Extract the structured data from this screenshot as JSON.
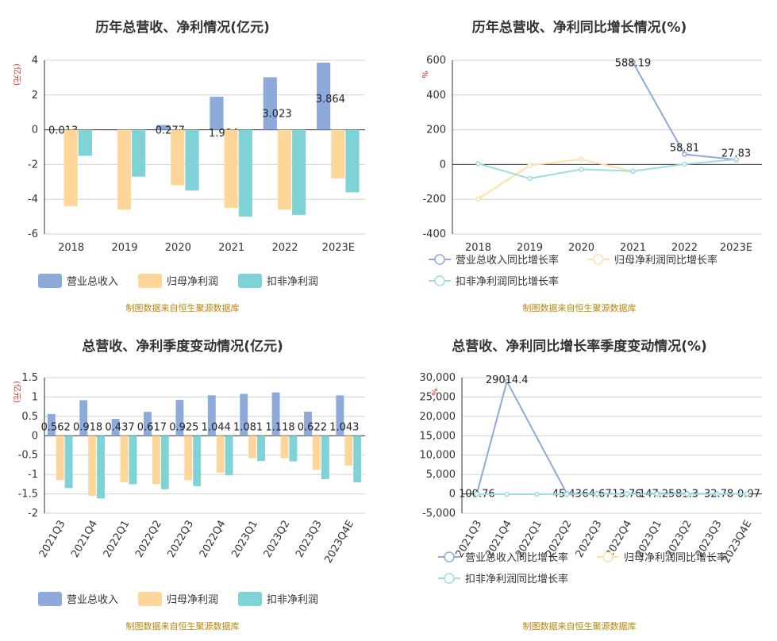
{
  "colors": {
    "revenue_bar": "#8eaadb",
    "netprofit_bar": "#ffd699",
    "deducted_bar": "#7fd3d6",
    "revenue_line": "#8eaadb",
    "netprofit_line": "#ffe0a8",
    "deducted_line": "#9ddde0",
    "source": "#b8860b",
    "unit": "#d62728"
  },
  "source_text": "制图数据来自恒生聚源数据库",
  "chart_data": [
    {
      "type": "bar",
      "title": "历年总营收、净利情况(亿元)",
      "ylabel": "(亿元)",
      "categories": [
        "2018",
        "2019",
        "2020",
        "2021",
        "2022",
        "2023E"
      ],
      "ylim": [
        -6,
        4
      ],
      "yticks": [
        4,
        2,
        0,
        -2,
        -4,
        -6
      ],
      "grid": true,
      "legend": "bottom",
      "series": [
        {
          "name": "营业总收入",
          "values": [
            0.013,
            0.0,
            0.277,
            1.904,
            3.023,
            3.864
          ],
          "labels": [
            "0.013",
            "",
            "0.277",
            "1.904",
            "3.023",
            "3.864"
          ]
        },
        {
          "name": "归母净利润",
          "values": [
            -4.4,
            -4.6,
            -3.2,
            -4.5,
            -4.6,
            -2.8
          ]
        },
        {
          "name": "扣非净利润",
          "values": [
            -1.5,
            -2.7,
            -3.5,
            -5.0,
            -4.9,
            -3.6
          ]
        }
      ]
    },
    {
      "type": "line",
      "title": "历年总营收、净利同比增长情况(%)",
      "ylabel": "%",
      "categories": [
        "2018",
        "2019",
        "2020",
        "2021",
        "2022",
        "2023E"
      ],
      "ylim": [
        -400,
        600
      ],
      "yticks": [
        600,
        400,
        200,
        0,
        -200,
        -400
      ],
      "grid": true,
      "legend": "bottom",
      "series": [
        {
          "name": "营业总收入同比增长率",
          "values": [
            null,
            null,
            null,
            588.19,
            58.81,
            27.83
          ],
          "labels": [
            "",
            "",
            "",
            "588.19",
            "58.81",
            "27.83"
          ]
        },
        {
          "name": "归母净利润同比增长率",
          "values": [
            -198,
            -5,
            30,
            -40,
            null,
            null
          ]
        },
        {
          "name": "扣非净利润同比增长率",
          "values": [
            5,
            -80,
            -28,
            -38,
            2,
            30
          ]
        }
      ]
    },
    {
      "type": "bar",
      "title": "总营收、净利季度变动情况(亿元)",
      "ylabel": "(亿元)",
      "categories": [
        "2021Q3",
        "2021Q4",
        "2022Q1",
        "2022Q2",
        "2022Q3",
        "2022Q4",
        "2023Q1",
        "2023Q2",
        "2023Q3",
        "2023Q4E"
      ],
      "ylim": [
        -2,
        1.5
      ],
      "yticks": [
        1.5,
        1,
        0.5,
        0,
        -0.5,
        -1,
        -1.5,
        -2
      ],
      "grid": true,
      "legend": "bottom",
      "series": [
        {
          "name": "营业总收入",
          "values": [
            0.562,
            0.918,
            0.437,
            0.617,
            0.925,
            1.044,
            1.081,
            1.118,
            0.622,
            1.043
          ],
          "labels": [
            "0.562",
            "0.918",
            "0.437",
            "0.617",
            "0.925",
            "1.044",
            "1.081",
            "1.118",
            "0.622",
            "1.043"
          ]
        },
        {
          "name": "归母净利润",
          "values": [
            -1.15,
            -1.55,
            -1.2,
            -1.25,
            -1.15,
            -0.95,
            -0.58,
            -0.58,
            -0.88,
            -0.77
          ]
        },
        {
          "name": "扣非净利润",
          "values": [
            -1.35,
            -1.62,
            -1.25,
            -1.38,
            -1.3,
            -1.02,
            -0.65,
            -0.66,
            -1.12,
            -1.2
          ]
        }
      ]
    },
    {
      "type": "line",
      "title": "总营收、净利同比增长率季度变动情况(%)",
      "ylabel": "%",
      "categories": [
        "2021Q3",
        "2021Q4",
        "2022Q1",
        "2022Q2",
        "2022Q3",
        "2022Q4",
        "2023Q1",
        "2023Q2",
        "2023Q3",
        "2023Q4E"
      ],
      "ylim": [
        -5000,
        30000
      ],
      "yticks": [
        "30,000",
        "25,000",
        "20,000",
        "15,000",
        "10,000",
        "5,000",
        "0",
        "-5,000"
      ],
      "ytick_values": [
        30000,
        25000,
        20000,
        15000,
        10000,
        5000,
        0,
        -5000
      ],
      "grid": true,
      "legend": "bottom",
      "series": [
        {
          "name": "营业总收入同比增长率",
          "values": [
            100.76,
            29014.4,
            null,
            45.43,
            64.67,
            13.76,
            147.25,
            81.3,
            -32.78,
            -0.07
          ],
          "labels": [
            "100.76",
            "29014.4",
            "",
            "45.43",
            "64.67",
            "13.76",
            "147.25",
            "81.3",
            "-32.78",
            "-0.07"
          ]
        },
        {
          "name": "归母净利润同比增长率",
          "values": [
            null,
            null,
            null,
            null,
            null,
            null,
            null,
            null,
            null,
            null
          ]
        },
        {
          "name": "扣非净利润同比增长率",
          "values": [
            -50,
            -100,
            -80,
            -60,
            -40,
            -30,
            -20,
            -30,
            -40,
            -30
          ]
        }
      ]
    }
  ]
}
